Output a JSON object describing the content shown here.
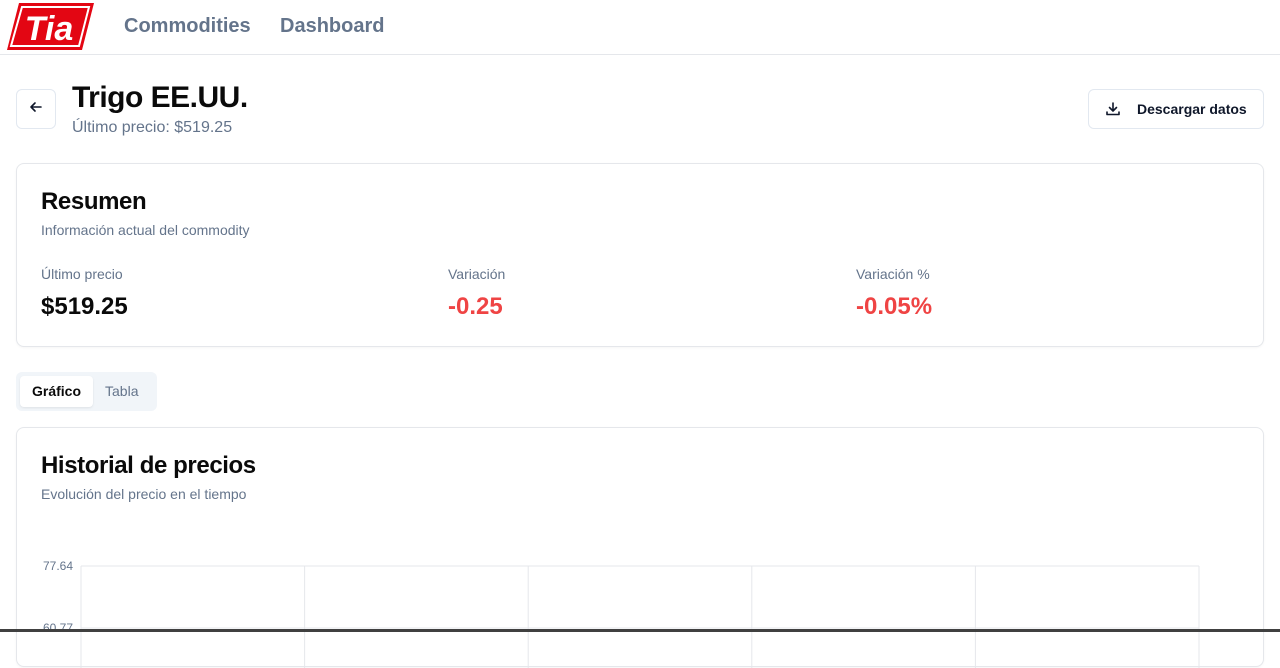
{
  "nav": {
    "logo_text": "Tia",
    "links": [
      {
        "label": "Commodities"
      },
      {
        "label": "Dashboard"
      }
    ]
  },
  "header": {
    "title": "Trigo EE.UU.",
    "subtitle": "Último precio: $519.25",
    "download_label": "Descargar datos"
  },
  "summary": {
    "title": "Resumen",
    "description": "Información actual del commodity",
    "stats": [
      {
        "label": "Último precio",
        "value": "$519.25",
        "color": "#0a0a0a"
      },
      {
        "label": "Variación",
        "value": "-0.25",
        "color": "#ef4444"
      },
      {
        "label": "Variación %",
        "value": "-0.05%",
        "color": "#ef4444"
      }
    ]
  },
  "tabs": [
    {
      "label": "Gráfico",
      "active": true
    },
    {
      "label": "Tabla",
      "active": false
    }
  ],
  "chart_card": {
    "title": "Historial de precios",
    "description": "Evolución del precio en el tiempo"
  },
  "chart_data": {
    "type": "line",
    "title": "Historial de precios",
    "xlabel": "",
    "ylabel": "",
    "y_tick_labels": [
      "77.64",
      "60.77"
    ],
    "grid": true,
    "series": []
  },
  "colors": {
    "accent_red": "#e30613",
    "negative": "#ef4444",
    "muted": "#64748b"
  }
}
